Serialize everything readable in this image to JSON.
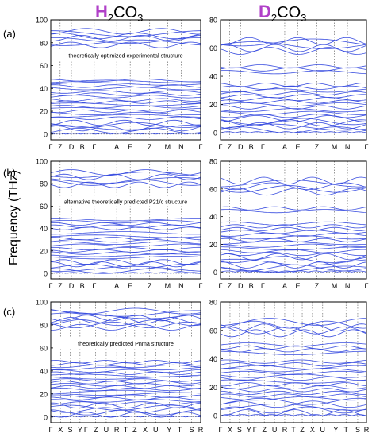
{
  "titles": {
    "left_prefix": "H",
    "left_suffix": "CO",
    "right_prefix": "D",
    "right_suffix": "CO",
    "sub2": "2",
    "sub3": "3"
  },
  "ylabel": "Frequency (THz)",
  "panel_labels": [
    "(a)",
    "(b)",
    "(c)"
  ],
  "line_color": "#3b4fe0",
  "chart_data": [
    {
      "type": "line",
      "panel": "(a)",
      "column": "H2CO3",
      "annotation": "theoretically optimized experimental structure",
      "ylim": [
        -5,
        100
      ],
      "yticks": [
        0,
        20,
        40,
        60,
        80,
        100
      ],
      "kpath": [
        "Γ",
        "Z",
        "D",
        "B",
        "Γ",
        "A",
        "E",
        "Z",
        "M",
        "N",
        "Γ"
      ],
      "kpos": [
        0,
        0.0625,
        0.1375,
        0.21,
        0.29,
        0.44,
        0.53,
        0.66,
        0.78,
        0.87,
        1.0
      ],
      "branches": [
        0,
        3,
        5,
        6,
        8,
        10,
        14,
        16,
        18,
        20,
        22,
        24,
        26,
        28,
        30,
        33,
        35,
        37,
        40,
        42,
        44,
        46,
        47,
        78,
        80,
        82,
        84,
        86,
        88,
        90
      ]
    },
    {
      "type": "line",
      "panel": "(a)",
      "column": "D2CO3",
      "annotation": "",
      "ylim": [
        -5,
        80
      ],
      "yticks": [
        0,
        20,
        40,
        60,
        80
      ],
      "kpath": [
        "Γ",
        "Z",
        "D",
        "B",
        "Γ",
        "A",
        "E",
        "Z",
        "M",
        "N",
        "Γ"
      ],
      "kpos": [
        0,
        0.0625,
        0.1375,
        0.21,
        0.29,
        0.44,
        0.53,
        0.66,
        0.78,
        0.87,
        1.0
      ],
      "branches": [
        0,
        2,
        4,
        5,
        7,
        8,
        10,
        12,
        14,
        16,
        18,
        20,
        22,
        24,
        26,
        28,
        30,
        32,
        34,
        43,
        45,
        47,
        58,
        60,
        62,
        64,
        65
      ]
    },
    {
      "type": "line",
      "panel": "(b)",
      "column": "H2CO3",
      "annotation": "alternative theoretically predicted P21/c structure",
      "ylim": [
        -5,
        100
      ],
      "yticks": [
        0,
        20,
        40,
        60,
        80,
        100
      ],
      "kpath": [
        "Γ",
        "Z",
        "D",
        "B",
        "Γ",
        "A",
        "E",
        "Z",
        "M",
        "N",
        "Γ"
      ],
      "kpos": [
        0,
        0.0625,
        0.1375,
        0.21,
        0.29,
        0.44,
        0.53,
        0.66,
        0.78,
        0.87,
        1.0
      ],
      "branches": [
        0,
        2,
        4,
        6,
        8,
        10,
        14,
        16,
        18,
        20,
        22,
        25,
        27,
        29,
        31,
        33,
        36,
        40,
        42,
        44,
        46,
        48,
        79,
        81,
        83,
        86,
        88,
        90
      ]
    },
    {
      "type": "line",
      "panel": "(b)",
      "column": "D2CO3",
      "annotation": "",
      "ylim": [
        -5,
        80
      ],
      "yticks": [
        0,
        20,
        40,
        60,
        80
      ],
      "kpath": [
        "Γ",
        "Z",
        "D",
        "B",
        "Γ",
        "A",
        "E",
        "Z",
        "M",
        "N",
        "Γ"
      ],
      "kpos": [
        0,
        0.0625,
        0.1375,
        0.21,
        0.29,
        0.44,
        0.53,
        0.66,
        0.78,
        0.87,
        1.0
      ],
      "branches": [
        0,
        2,
        3,
        5,
        7,
        9,
        11,
        13,
        15,
        17,
        19,
        21,
        23,
        25,
        27,
        29,
        31,
        33,
        35,
        44,
        46,
        58,
        60,
        62,
        64,
        66
      ]
    },
    {
      "type": "line",
      "panel": "(c)",
      "column": "H2CO3",
      "annotation": "theoretically predicted Pnma structure",
      "ylim": [
        -5,
        100
      ],
      "yticks": [
        0,
        20,
        40,
        60,
        80,
        100
      ],
      "kpath": [
        "Γ",
        "X",
        "S",
        "Y",
        "Γ",
        "Z",
        "U",
        "R",
        "T",
        "Z",
        "X",
        "U",
        "Y",
        "T",
        "S",
        "R"
      ],
      "kpos": [
        0,
        0.065,
        0.13,
        0.195,
        0.235,
        0.3,
        0.37,
        0.44,
        0.5,
        0.56,
        0.63,
        0.7,
        0.79,
        0.86,
        0.94,
        1.0
      ],
      "branches": [
        0,
        2,
        4,
        6,
        8,
        10,
        12,
        14,
        16,
        18,
        20,
        22,
        24,
        26,
        28,
        30,
        32,
        34,
        36,
        38,
        40,
        42,
        44,
        46,
        48,
        78,
        80,
        82,
        84,
        86,
        88,
        90,
        92
      ]
    },
    {
      "type": "line",
      "panel": "(c)",
      "column": "D2CO3",
      "annotation": "",
      "ylim": [
        -5,
        80
      ],
      "yticks": [
        0,
        20,
        40,
        60,
        80
      ],
      "kpath": [
        "Γ",
        "X",
        "S",
        "Y",
        "Γ",
        "Z",
        "U",
        "R",
        "T",
        "Z",
        "X",
        "U",
        "Y",
        "T",
        "S",
        "R"
      ],
      "kpos": [
        0,
        0.065,
        0.13,
        0.195,
        0.235,
        0.3,
        0.37,
        0.44,
        0.5,
        0.56,
        0.63,
        0.7,
        0.79,
        0.86,
        0.94,
        1.0
      ],
      "branches": [
        0,
        2,
        4,
        6,
        8,
        10,
        12,
        14,
        16,
        18,
        20,
        22,
        24,
        26,
        28,
        30,
        32,
        34,
        36,
        38,
        44,
        46,
        48,
        50,
        58,
        60,
        62,
        64,
        66
      ]
    }
  ]
}
